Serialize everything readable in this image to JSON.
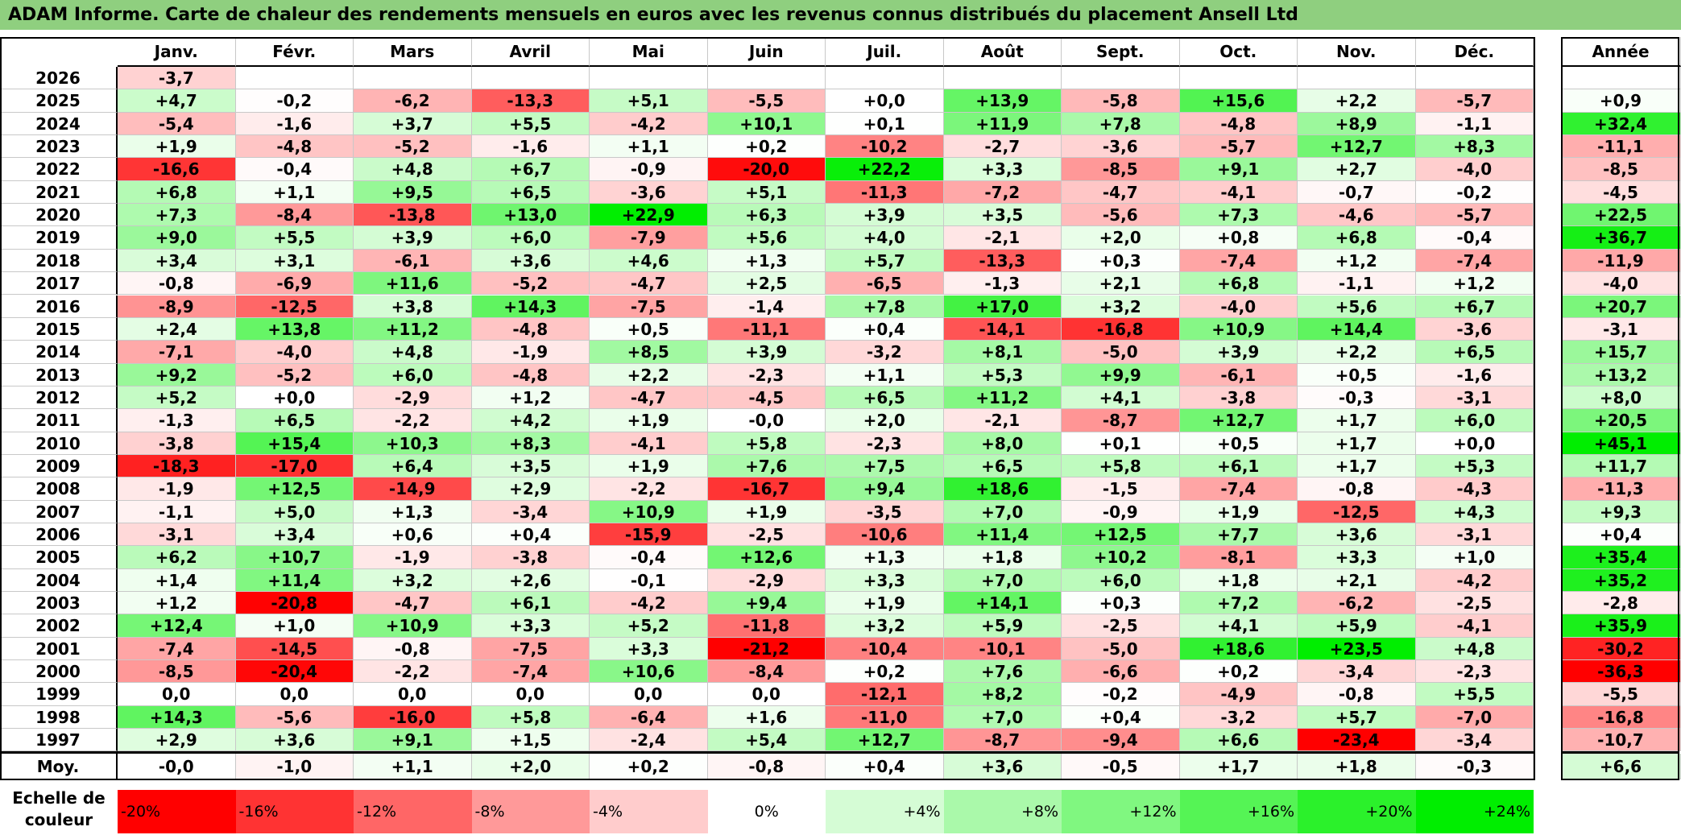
{
  "title": "ADAM Informe. Carte de chaleur des rendements mensuels en euros avec les revenus connus distribués du placement Ansell Ltd",
  "chart_data": {
    "type": "heatmap",
    "months": [
      "Janv.",
      "Févr.",
      "Mars",
      "Avril",
      "Mai",
      "Juin",
      "Juil.",
      "Août",
      "Sept.",
      "Oct.",
      "Nov.",
      "Déc."
    ],
    "year_header": "Année",
    "rows": [
      {
        "year": "2026",
        "values": [
          "-3,7",
          "",
          "",
          "",
          "",
          "",
          "",
          "",
          "",
          "",
          "",
          ""
        ],
        "annual": ""
      },
      {
        "year": "2025",
        "values": [
          "+4,7",
          "-0,2",
          "-6,2",
          "-13,3",
          "+5,1",
          "-5,5",
          "+0,0",
          "+13,9",
          "-5,8",
          "+15,6",
          "+2,2",
          "-5,7"
        ],
        "annual": "+0,9"
      },
      {
        "year": "2024",
        "values": [
          "-5,4",
          "-1,6",
          "+3,7",
          "+5,5",
          "-4,2",
          "+10,1",
          "+0,1",
          "+11,9",
          "+7,8",
          "-4,8",
          "+8,9",
          "-1,1"
        ],
        "annual": "+32,4"
      },
      {
        "year": "2023",
        "values": [
          "+1,9",
          "-4,8",
          "-5,2",
          "-1,6",
          "+1,1",
          "+0,2",
          "-10,2",
          "-2,7",
          "-3,6",
          "-5,7",
          "+12,7",
          "+8,3"
        ],
        "annual": "-11,1"
      },
      {
        "year": "2022",
        "values": [
          "-16,6",
          "-0,4",
          "+4,8",
          "+6,7",
          "-0,9",
          "-20,0",
          "+22,2",
          "+3,3",
          "-8,5",
          "+9,1",
          "+2,7",
          "-4,0"
        ],
        "annual": "-8,5"
      },
      {
        "year": "2021",
        "values": [
          "+6,8",
          "+1,1",
          "+9,5",
          "+6,5",
          "-3,6",
          "+5,1",
          "-11,3",
          "-7,2",
          "-4,7",
          "-4,1",
          "-0,7",
          "-0,2"
        ],
        "annual": "-4,5"
      },
      {
        "year": "2020",
        "values": [
          "+7,3",
          "-8,4",
          "-13,8",
          "+13,0",
          "+22,9",
          "+6,3",
          "+3,9",
          "+3,5",
          "-5,6",
          "+7,3",
          "-4,6",
          "-5,7"
        ],
        "annual": "+22,5"
      },
      {
        "year": "2019",
        "values": [
          "+9,0",
          "+5,5",
          "+3,9",
          "+6,0",
          "-7,9",
          "+5,6",
          "+4,0",
          "-2,1",
          "+2,0",
          "+0,8",
          "+6,8",
          "-0,4"
        ],
        "annual": "+36,7"
      },
      {
        "year": "2018",
        "values": [
          "+3,4",
          "+3,1",
          "-6,1",
          "+3,6",
          "+4,6",
          "+1,3",
          "+5,7",
          "-13,3",
          "+0,3",
          "-7,4",
          "+1,2",
          "-7,4"
        ],
        "annual": "-11,9"
      },
      {
        "year": "2017",
        "values": [
          "-0,8",
          "-6,9",
          "+11,6",
          "-5,2",
          "-4,7",
          "+2,5",
          "-6,5",
          "-1,3",
          "+2,1",
          "+6,8",
          "-1,1",
          "+1,2"
        ],
        "annual": "-4,0"
      },
      {
        "year": "2016",
        "values": [
          "-8,9",
          "-12,5",
          "+3,8",
          "+14,3",
          "-7,5",
          "-1,4",
          "+7,8",
          "+17,0",
          "+3,2",
          "-4,0",
          "+5,6",
          "+6,7"
        ],
        "annual": "+20,7"
      },
      {
        "year": "2015",
        "values": [
          "+2,4",
          "+13,8",
          "+11,2",
          "-4,8",
          "+0,5",
          "-11,1",
          "+0,4",
          "-14,1",
          "-16,8",
          "+10,9",
          "+14,4",
          "-3,6"
        ],
        "annual": "-3,1"
      },
      {
        "year": "2014",
        "values": [
          "-7,1",
          "-4,0",
          "+4,8",
          "-1,9",
          "+8,5",
          "+3,9",
          "-3,2",
          "+8,1",
          "-5,0",
          "+3,9",
          "+2,2",
          "+6,5"
        ],
        "annual": "+15,7"
      },
      {
        "year": "2013",
        "values": [
          "+9,2",
          "-5,2",
          "+6,0",
          "-4,8",
          "+2,2",
          "-2,3",
          "+1,1",
          "+5,3",
          "+9,9",
          "-6,1",
          "+0,5",
          "-1,6"
        ],
        "annual": "+13,2"
      },
      {
        "year": "2012",
        "values": [
          "+5,2",
          "+0,0",
          "-2,9",
          "+1,2",
          "-4,7",
          "-4,5",
          "+6,5",
          "+11,2",
          "+4,1",
          "-3,8",
          "-0,3",
          "-3,1"
        ],
        "annual": "+8,0"
      },
      {
        "year": "2011",
        "values": [
          "-1,3",
          "+6,5",
          "-2,2",
          "+4,2",
          "+1,9",
          "-0,0",
          "+2,0",
          "-2,1",
          "-8,7",
          "+12,7",
          "+1,7",
          "+6,0"
        ],
        "annual": "+20,5"
      },
      {
        "year": "2010",
        "values": [
          "-3,8",
          "+15,4",
          "+10,3",
          "+8,3",
          "-4,1",
          "+5,8",
          "-2,3",
          "+8,0",
          "+0,1",
          "+0,5",
          "+1,7",
          "+0,0"
        ],
        "annual": "+45,1"
      },
      {
        "year": "2009",
        "values": [
          "-18,3",
          "-17,0",
          "+6,4",
          "+3,5",
          "+1,9",
          "+7,6",
          "+7,5",
          "+6,5",
          "+5,8",
          "+6,1",
          "+1,7",
          "+5,3"
        ],
        "annual": "+11,7"
      },
      {
        "year": "2008",
        "values": [
          "-1,9",
          "+12,5",
          "-14,9",
          "+2,9",
          "-2,2",
          "-16,7",
          "+9,4",
          "+18,6",
          "-1,5",
          "-7,4",
          "-0,8",
          "-4,3"
        ],
        "annual": "-11,3"
      },
      {
        "year": "2007",
        "values": [
          "-1,1",
          "+5,0",
          "+1,3",
          "-3,4",
          "+10,9",
          "+1,9",
          "-3,5",
          "+7,0",
          "-0,9",
          "+1,9",
          "-12,5",
          "+4,3"
        ],
        "annual": "+9,3"
      },
      {
        "year": "2006",
        "values": [
          "-3,1",
          "+3,4",
          "+0,6",
          "+0,4",
          "-15,9",
          "-2,5",
          "-10,6",
          "+11,4",
          "+12,5",
          "+7,7",
          "+3,6",
          "-3,1"
        ],
        "annual": "+0,4"
      },
      {
        "year": "2005",
        "values": [
          "+6,2",
          "+10,7",
          "-1,9",
          "-3,8",
          "-0,4",
          "+12,6",
          "+1,3",
          "+1,8",
          "+10,2",
          "-8,1",
          "+3,3",
          "+1,0"
        ],
        "annual": "+35,4"
      },
      {
        "year": "2004",
        "values": [
          "+1,4",
          "+11,4",
          "+3,2",
          "+2,6",
          "-0,1",
          "-2,9",
          "+3,3",
          "+7,0",
          "+6,0",
          "+1,8",
          "+2,1",
          "-4,2"
        ],
        "annual": "+35,2"
      },
      {
        "year": "2003",
        "values": [
          "+1,2",
          "-20,8",
          "-4,7",
          "+6,1",
          "-4,2",
          "+9,4",
          "+1,9",
          "+14,1",
          "+0,3",
          "+7,2",
          "-6,2",
          "-2,5"
        ],
        "annual": "-2,8"
      },
      {
        "year": "2002",
        "values": [
          "+12,4",
          "+1,0",
          "+10,9",
          "+3,3",
          "+5,2",
          "-11,8",
          "+3,2",
          "+5,9",
          "-2,5",
          "+4,1",
          "+5,9",
          "-4,1"
        ],
        "annual": "+35,9"
      },
      {
        "year": "2001",
        "values": [
          "-7,4",
          "-14,5",
          "-0,8",
          "-7,5",
          "+3,3",
          "-21,2",
          "-10,4",
          "-10,1",
          "-5,0",
          "+18,6",
          "+23,5",
          "+4,8"
        ],
        "annual": "-30,2"
      },
      {
        "year": "2000",
        "values": [
          "-8,5",
          "-20,4",
          "-2,2",
          "-7,4",
          "+10,6",
          "-8,4",
          "+0,2",
          "+7,6",
          "-6,6",
          "+0,2",
          "-3,4",
          "-2,3"
        ],
        "annual": "-36,3"
      },
      {
        "year": "1999",
        "values": [
          "0,0",
          "0,0",
          "0,0",
          "0,0",
          "0,0",
          "0,0",
          "-12,1",
          "+8,2",
          "-0,2",
          "-4,9",
          "-0,8",
          "+5,5"
        ],
        "annual": "-5,5"
      },
      {
        "year": "1998",
        "values": [
          "+14,3",
          "-5,6",
          "-16,0",
          "+5,8",
          "-6,4",
          "+1,6",
          "-11,0",
          "+7,0",
          "+0,4",
          "-3,2",
          "+5,7",
          "-7,0"
        ],
        "annual": "-16,8"
      },
      {
        "year": "1997",
        "values": [
          "+2,9",
          "+3,6",
          "+9,1",
          "+1,5",
          "-2,4",
          "+5,4",
          "+12,7",
          "-8,7",
          "-9,4",
          "+6,6",
          "-23,4",
          "-3,4"
        ],
        "annual": "-10,7"
      }
    ],
    "average": {
      "label": "Moy.",
      "values": [
        "-0,0",
        "-1,0",
        "+1,1",
        "+2,0",
        "+0,2",
        "-0,8",
        "+0,4",
        "+3,6",
        "-0,5",
        "+1,7",
        "+1,8",
        "-0,3"
      ],
      "annual": "+6,6"
    },
    "scale": {
      "label": "Echelle de couleur",
      "steps": [
        {
          "label": "-20%",
          "value": -20
        },
        {
          "label": "-16%",
          "value": -16
        },
        {
          "label": "-12%",
          "value": -12
        },
        {
          "label": "-8%",
          "value": -8
        },
        {
          "label": "-4%",
          "value": -4
        },
        {
          "label": "0%",
          "value": 0
        },
        {
          "label": "+4%",
          "value": 4
        },
        {
          "label": "+8%",
          "value": 8
        },
        {
          "label": "+12%",
          "value": 12
        },
        {
          "label": "+16%",
          "value": 16
        },
        {
          "label": "+20%",
          "value": 20
        },
        {
          "label": "+24%",
          "value": 24
        }
      ]
    },
    "colors": {
      "negative": "#ff0000",
      "positive": "#00ee00",
      "neutral": "#ffffff",
      "title_bg": "#8fcf7f"
    }
  }
}
